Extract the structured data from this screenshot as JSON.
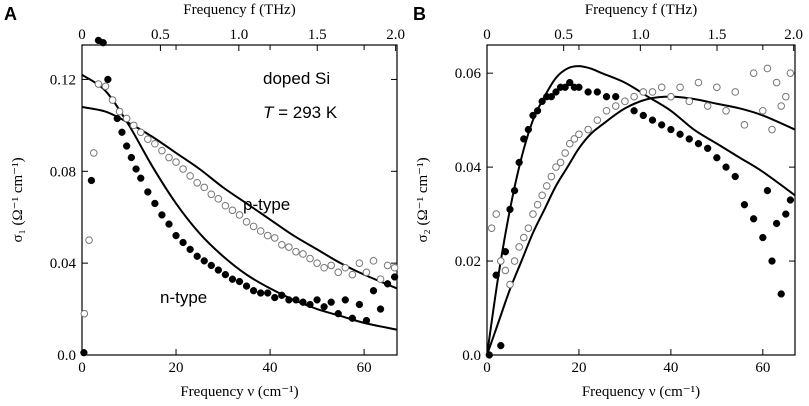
{
  "figure": {
    "panels": [
      "A",
      "B"
    ]
  },
  "colors": {
    "axis": "#000000",
    "filled": "#000000",
    "open_stroke": "#777777",
    "open_fill": "#ffffff",
    "background": "#ffffff"
  },
  "chart_data": [
    {
      "type": "scatter",
      "panel_label": "A",
      "xlabel": "Frequency ν (cm⁻¹)",
      "x2label": "Frequency f (THz)",
      "ylabel": "σ₁ (Ω⁻¹ cm⁻¹)",
      "xlim": [
        0,
        67
      ],
      "ylim": [
        0,
        0.135
      ],
      "x_ticks": [
        0,
        20,
        40,
        60
      ],
      "x_tick_labels": [
        "0",
        "20",
        "40",
        "60"
      ],
      "x2_ticks_thz": [
        0,
        0.5,
        1.0,
        1.5,
        2.0
      ],
      "x2_tick_labels": [
        "0",
        "0.5",
        "1.0",
        "1.5",
        "2.0"
      ],
      "y_ticks": [
        0,
        0.04,
        0.08,
        0.12
      ],
      "y_tick_labels": [
        "0.0",
        "0.04",
        "0.08",
        "0.12"
      ],
      "annotations": {
        "sample": "doped Si",
        "temperature_var": "T",
        "temperature_value": " = 293 K",
        "p_label": "p-type",
        "n_label": "n-type"
      },
      "series": [
        {
          "name": "n-type data",
          "style": "filled",
          "x": [
            0.4,
            2,
            3.5,
            4.5,
            5.5,
            6.5,
            7.5,
            8.5,
            9.5,
            10.5,
            11.5,
            12.5,
            14,
            15.5,
            17,
            18.5,
            20,
            21.5,
            23,
            24.5,
            26,
            27.5,
            29,
            30.5,
            32,
            33.5,
            35,
            36.5,
            38,
            39.5,
            41,
            42.5,
            44,
            45.5,
            47,
            48.5,
            50,
            51.5,
            53,
            54.5,
            56,
            57.5,
            59,
            60.5,
            62,
            63.5,
            65,
            66.5
          ],
          "y": [
            0.001,
            0.076,
            0.137,
            0.136,
            0.12,
            0.111,
            0.103,
            0.097,
            0.091,
            0.086,
            0.081,
            0.077,
            0.071,
            0.066,
            0.061,
            0.057,
            0.052,
            0.049,
            0.046,
            0.043,
            0.041,
            0.039,
            0.037,
            0.035,
            0.033,
            0.032,
            0.03,
            0.028,
            0.027,
            0.027,
            0.025,
            0.026,
            0.024,
            0.024,
            0.023,
            0.022,
            0.024,
            0.021,
            0.023,
            0.018,
            0.024,
            0.016,
            0.022,
            0.015,
            0.028,
            0.02,
            0.031,
            0.034
          ]
        },
        {
          "name": "p-type data",
          "style": "open",
          "x": [
            0.5,
            1.5,
            2.5,
            3.5,
            5,
            6.5,
            8,
            9.5,
            11,
            12.5,
            14,
            15.5,
            17,
            18.5,
            20,
            21.5,
            23,
            24.5,
            26,
            27.5,
            29,
            30.5,
            32,
            33.5,
            35,
            36.5,
            38,
            39.5,
            41,
            42.5,
            44,
            45.5,
            47,
            48.5,
            50,
            51.5,
            53,
            54.5,
            56,
            57.5,
            59,
            60.5,
            62,
            63.5,
            65,
            66.5
          ],
          "y": [
            0.018,
            0.05,
            0.088,
            0.118,
            0.117,
            0.111,
            0.106,
            0.103,
            0.1,
            0.097,
            0.094,
            0.092,
            0.089,
            0.086,
            0.084,
            0.081,
            0.078,
            0.075,
            0.073,
            0.07,
            0.068,
            0.065,
            0.063,
            0.061,
            0.058,
            0.056,
            0.054,
            0.052,
            0.051,
            0.048,
            0.047,
            0.045,
            0.044,
            0.042,
            0.04,
            0.038,
            0.039,
            0.036,
            0.038,
            0.035,
            0.04,
            0.036,
            0.041,
            0.033,
            0.039,
            0.038
          ]
        },
        {
          "name": "n-type fit",
          "style": "line",
          "x": [
            0,
            5,
            10,
            15,
            20,
            25,
            30,
            35,
            40,
            45,
            50,
            55,
            60,
            67
          ],
          "y": [
            0.122,
            0.115,
            0.1,
            0.082,
            0.066,
            0.053,
            0.043,
            0.035,
            0.029,
            0.024,
            0.02,
            0.017,
            0.014,
            0.011
          ]
        },
        {
          "name": "p-type fit",
          "style": "line",
          "x": [
            0,
            5,
            10,
            15,
            20,
            25,
            30,
            35,
            40,
            45,
            50,
            55,
            60,
            67
          ],
          "y": [
            0.108,
            0.106,
            0.101,
            0.095,
            0.088,
            0.081,
            0.073,
            0.066,
            0.059,
            0.052,
            0.046,
            0.04,
            0.035,
            0.029
          ]
        }
      ]
    },
    {
      "type": "scatter",
      "panel_label": "B",
      "xlabel": "Frequency ν (cm⁻¹)",
      "x2label": "Frequency f (THz)",
      "ylabel": "σ₂ (Ω⁻¹ cm⁻¹)",
      "xlim": [
        0,
        67
      ],
      "ylim": [
        0,
        0.066
      ],
      "x_ticks": [
        0,
        20,
        40,
        60
      ],
      "x_tick_labels": [
        "0",
        "20",
        "40",
        "60"
      ],
      "x2_ticks_thz": [
        0,
        0.5,
        1.0,
        1.5,
        2.0
      ],
      "x2_tick_labels": [
        "0",
        "0.5",
        "1.0",
        "1.5",
        "2.0"
      ],
      "y_ticks": [
        0,
        0.02,
        0.04,
        0.06
      ],
      "y_tick_labels": [
        "0.0",
        "0.02",
        "0.04",
        "0.06"
      ],
      "series": [
        {
          "name": "n-type data",
          "style": "filled",
          "x": [
            0.5,
            2,
            3,
            4,
            5,
            6,
            7,
            8,
            9,
            10,
            11,
            12,
            13,
            14,
            15,
            16,
            17,
            18,
            19,
            20,
            22,
            24,
            26,
            28,
            30,
            32,
            34,
            36,
            38,
            40,
            42,
            44,
            46,
            48,
            50,
            52,
            54,
            56,
            58,
            60,
            61,
            62,
            63,
            64,
            65,
            66
          ],
          "y": [
            0.0,
            0.017,
            0.002,
            0.022,
            0.031,
            0.035,
            0.041,
            0.046,
            0.048,
            0.051,
            0.052,
            0.054,
            0.055,
            0.055,
            0.056,
            0.057,
            0.057,
            0.058,
            0.057,
            0.057,
            0.056,
            0.056,
            0.055,
            0.055,
            0.054,
            0.052,
            0.051,
            0.05,
            0.049,
            0.048,
            0.047,
            0.046,
            0.045,
            0.044,
            0.042,
            0.04,
            0.038,
            0.032,
            0.029,
            0.025,
            0.035,
            0.02,
            0.028,
            0.013,
            0.03,
            0.033
          ]
        },
        {
          "name": "p-type data",
          "style": "open",
          "x": [
            1,
            2,
            3,
            4,
            5,
            6,
            7,
            8,
            9,
            10,
            11,
            12,
            13,
            14,
            15,
            16,
            17,
            18,
            19,
            20,
            22,
            24,
            26,
            28,
            30,
            32,
            34,
            36,
            38,
            40,
            42,
            44,
            46,
            48,
            50,
            52,
            54,
            56,
            58,
            60,
            61,
            62,
            63,
            64,
            65,
            66
          ],
          "y": [
            0.027,
            0.03,
            0.02,
            0.018,
            0.015,
            0.02,
            0.023,
            0.025,
            0.027,
            0.03,
            0.032,
            0.034,
            0.036,
            0.038,
            0.04,
            0.041,
            0.043,
            0.045,
            0.046,
            0.047,
            0.048,
            0.05,
            0.052,
            0.053,
            0.054,
            0.055,
            0.056,
            0.056,
            0.057,
            0.055,
            0.057,
            0.054,
            0.058,
            0.053,
            0.057,
            0.052,
            0.056,
            0.049,
            0.06,
            0.052,
            0.061,
            0.048,
            0.058,
            0.053,
            0.055,
            0.06
          ]
        },
        {
          "name": "n-type fit",
          "style": "line",
          "x": [
            0,
            2.5,
            5,
            7.5,
            10,
            12.5,
            15,
            17.5,
            20,
            22.5,
            25,
            30,
            35,
            40,
            45,
            50,
            55,
            60,
            67
          ],
          "y": [
            0.0,
            0.017,
            0.031,
            0.042,
            0.05,
            0.055,
            0.059,
            0.061,
            0.0615,
            0.061,
            0.06,
            0.058,
            0.055,
            0.052,
            0.048,
            0.045,
            0.042,
            0.039,
            0.034
          ]
        },
        {
          "name": "p-type fit",
          "style": "line",
          "x": [
            0,
            2.5,
            5,
            7.5,
            10,
            12.5,
            15,
            17.5,
            20,
            22.5,
            25,
            30,
            35,
            40,
            45,
            50,
            55,
            60,
            67
          ],
          "y": [
            0.0,
            0.007,
            0.014,
            0.02,
            0.026,
            0.031,
            0.036,
            0.04,
            0.044,
            0.047,
            0.049,
            0.0525,
            0.0545,
            0.055,
            0.0545,
            0.0535,
            0.0525,
            0.051,
            0.048
          ]
        }
      ]
    }
  ]
}
